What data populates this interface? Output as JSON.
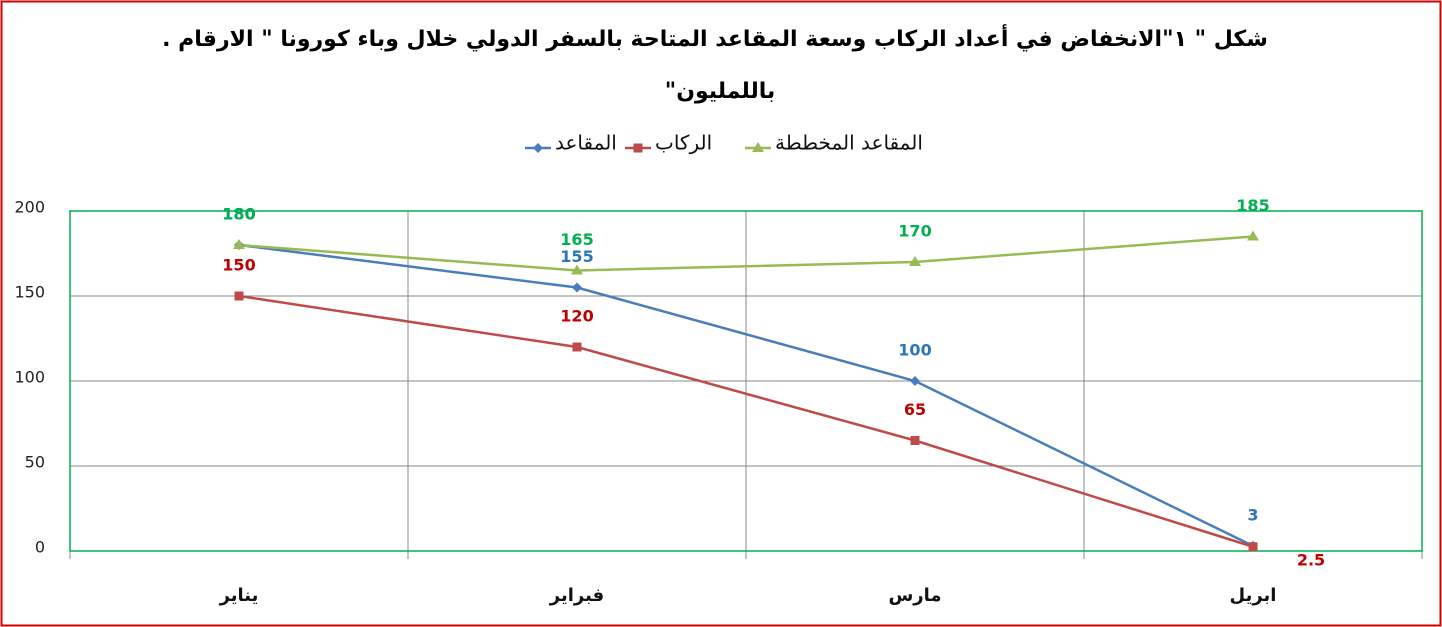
{
  "chart_data": {
    "type": "line",
    "title": [
      "شكل \" ١\"الانخفاض في  أعداد الركاب وسعة المقاعد المتاحة بالسفر الدولي  خلال وباء كورونا \" الارقام .",
      "باللمليون\""
    ],
    "categories": [
      "يناير",
      "فبراير",
      "مارس",
      "ابريل"
    ],
    "series": [
      {
        "name": "المقاعد",
        "color": "#4a7ebb",
        "label_color": "#2e75b6",
        "marker": "diamond",
        "values": [
          180,
          155,
          100,
          3
        ]
      },
      {
        "name": "الركاب",
        "color": "#be4b48",
        "label_color": "#c00000",
        "marker": "square",
        "values": [
          150,
          120,
          65,
          2.5
        ]
      },
      {
        "name": "المقاعد المخططة",
        "color": "#98b954",
        "label_color": "#00b050",
        "marker": "triangle",
        "values": [
          180,
          165,
          170,
          185
        ]
      }
    ],
    "ylim": [
      0,
      200
    ],
    "yticks": [
      0,
      50,
      100,
      150,
      200
    ],
    "grid": true
  }
}
